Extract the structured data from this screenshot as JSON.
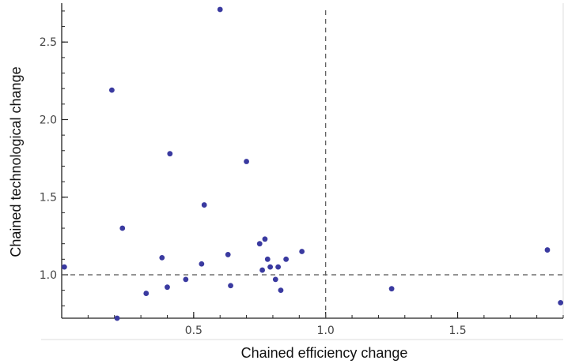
{
  "chart_data": {
    "type": "scatter",
    "title": "",
    "xlabel": "Chained efficiency change",
    "ylabel": "Chained technological change",
    "xlim": [
      0.0,
      1.9
    ],
    "ylim": [
      0.72,
      2.72
    ],
    "x_ticks": [
      {
        "value": 0.5,
        "label": "0.5"
      },
      {
        "value": 1.0,
        "label": "1.0"
      },
      {
        "value": 1.5,
        "label": "1.5"
      }
    ],
    "y_ticks": [
      {
        "value": 1.0,
        "label": "1.0"
      },
      {
        "value": 1.5,
        "label": "1.5"
      },
      {
        "value": 2.0,
        "label": "2.0"
      },
      {
        "value": 2.5,
        "label": "2.5"
      }
    ],
    "x_minor_step": 0.1,
    "y_minor_step": 0.1,
    "reference_lines": {
      "x": 1.0,
      "y": 1.0,
      "style": "dashed"
    },
    "grid": false,
    "marker_color": "#3a3aa0",
    "series": [
      {
        "points": [
          {
            "x": 0.01,
            "y": 1.05
          },
          {
            "x": 0.19,
            "y": 2.19
          },
          {
            "x": 0.21,
            "y": 0.72
          },
          {
            "x": 0.23,
            "y": 1.3
          },
          {
            "x": 0.32,
            "y": 0.88
          },
          {
            "x": 0.38,
            "y": 1.11
          },
          {
            "x": 0.4,
            "y": 0.92
          },
          {
            "x": 0.41,
            "y": 1.78
          },
          {
            "x": 0.47,
            "y": 0.97
          },
          {
            "x": 0.53,
            "y": 1.07
          },
          {
            "x": 0.54,
            "y": 1.45
          },
          {
            "x": 0.6,
            "y": 2.71
          },
          {
            "x": 0.63,
            "y": 1.13
          },
          {
            "x": 0.64,
            "y": 0.93
          },
          {
            "x": 0.7,
            "y": 1.73
          },
          {
            "x": 0.75,
            "y": 1.2
          },
          {
            "x": 0.76,
            "y": 1.03
          },
          {
            "x": 0.77,
            "y": 1.23
          },
          {
            "x": 0.78,
            "y": 1.1
          },
          {
            "x": 0.79,
            "y": 1.05
          },
          {
            "x": 0.81,
            "y": 0.97
          },
          {
            "x": 0.82,
            "y": 1.05
          },
          {
            "x": 0.83,
            "y": 0.9
          },
          {
            "x": 0.85,
            "y": 1.1
          },
          {
            "x": 0.91,
            "y": 1.15
          },
          {
            "x": 1.25,
            "y": 0.91
          },
          {
            "x": 1.84,
            "y": 1.16
          },
          {
            "x": 1.89,
            "y": 0.82
          }
        ]
      }
    ]
  }
}
